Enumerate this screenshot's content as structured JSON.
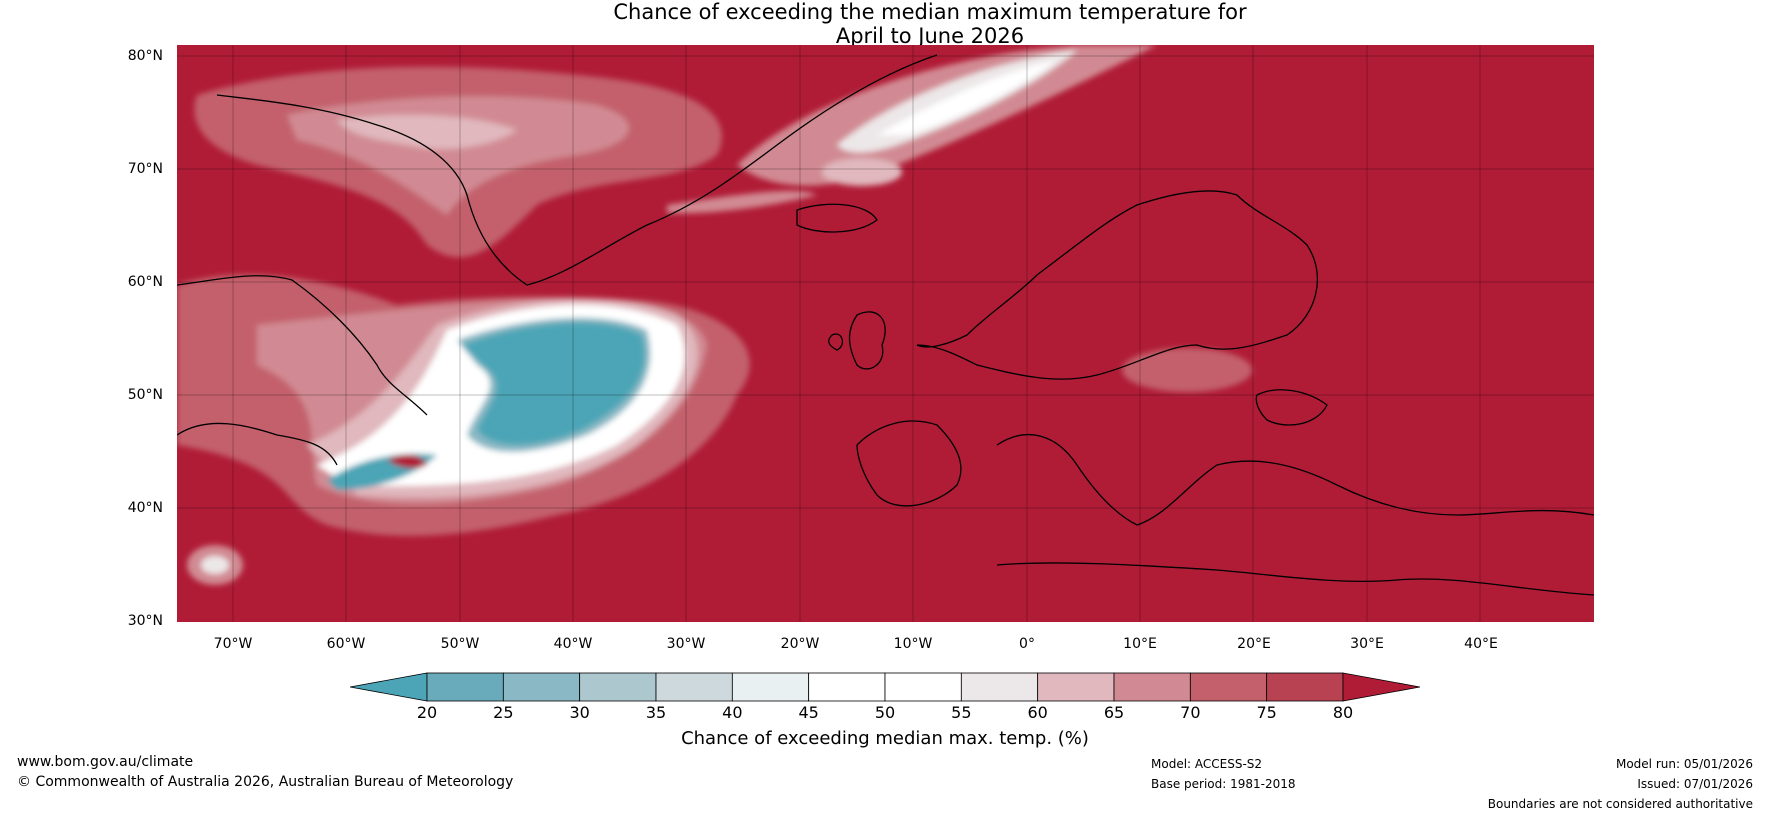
{
  "title": {
    "line1": "Chance of exceeding the median maximum temperature for",
    "line2": "April to June 2026"
  },
  "map": {
    "region": "North Atlantic and Europe",
    "lat_labels": [
      "80°N",
      "70°N",
      "60°N",
      "50°N",
      "40°N",
      "30°N"
    ],
    "lon_labels": [
      "70°W",
      "60°W",
      "50°W",
      "40°W",
      "30°W",
      "20°W",
      "10°W",
      "0°",
      "10°E",
      "20°E",
      "30°E",
      "40°E"
    ]
  },
  "legend": {
    "ticks": [
      "20",
      "25",
      "30",
      "35",
      "40",
      "45",
      "50",
      "55",
      "60",
      "65",
      "70",
      "75",
      "80"
    ],
    "colors": [
      "#4ba5b6",
      "#6aabbb",
      "#8ab8c4",
      "#adc7ce",
      "#ced9dd",
      "#e9f0f1",
      "#ffffff",
      "#ffffff",
      "#ece7e8",
      "#e0b8bd",
      "#d18a93",
      "#c3606c",
      "#b94252",
      "#b01c36"
    ],
    "label": "Chance of exceeding median max. temp. (%)"
  },
  "footer": {
    "website": "www.bom.gov.au/climate",
    "copyright": "© Commonwealth of Australia 2026, Australian Bureau of Meteorology",
    "model": "Model: ACCESS-S2",
    "base_period": "Base period: 1981-2018",
    "model_run": "Model run: 05/01/2026",
    "issued": "Issued: 07/01/2026",
    "disclaimer": "Boundaries are not considered authoritative"
  }
}
